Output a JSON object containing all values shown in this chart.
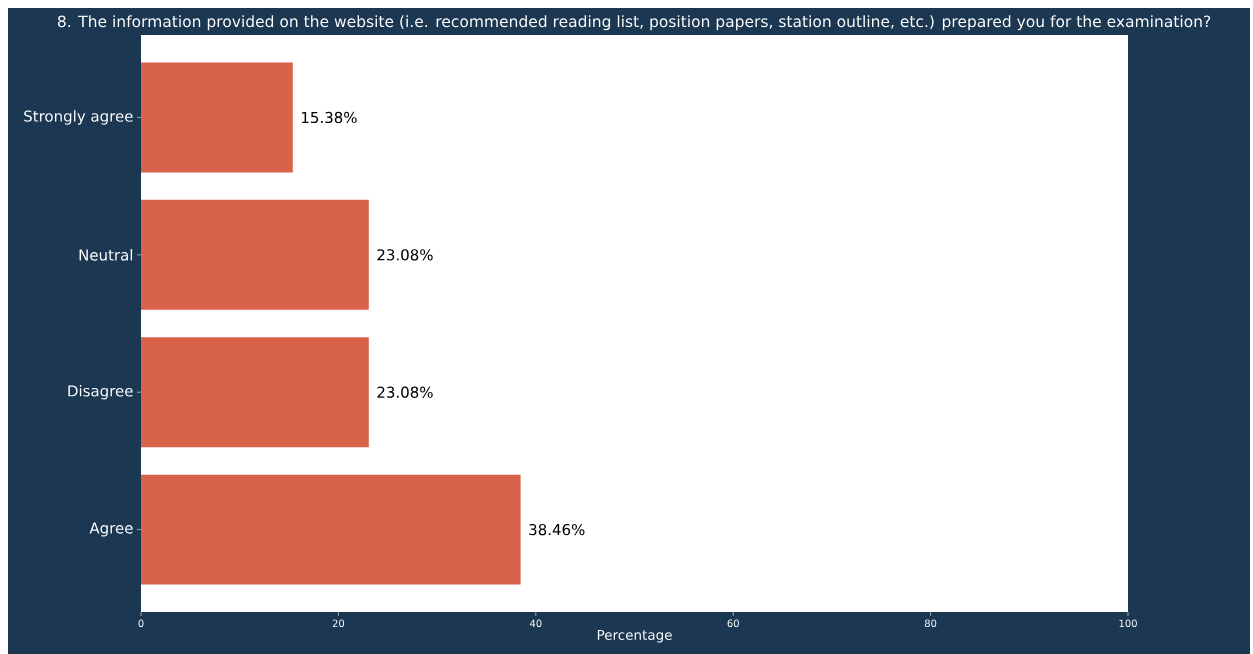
{
  "chart_data": {
    "type": "bar",
    "orientation": "horizontal",
    "title": "8. The information provided on the website (i.e. recommended reading list, position papers, station outline, etc.) prepared you for the examination?",
    "xlabel": "Percentage",
    "categories": [
      "Strongly agree",
      "Neutral",
      "Disagree",
      "Agree"
    ],
    "values": [
      15.38,
      23.08,
      23.08,
      38.46
    ],
    "value_labels": [
      "15.38%",
      "23.08%",
      "23.08%",
      "38.46%"
    ],
    "color": "#d9624a",
    "xlim": [
      0,
      100
    ],
    "xticks": [
      0,
      20,
      40,
      60,
      80,
      100
    ]
  }
}
